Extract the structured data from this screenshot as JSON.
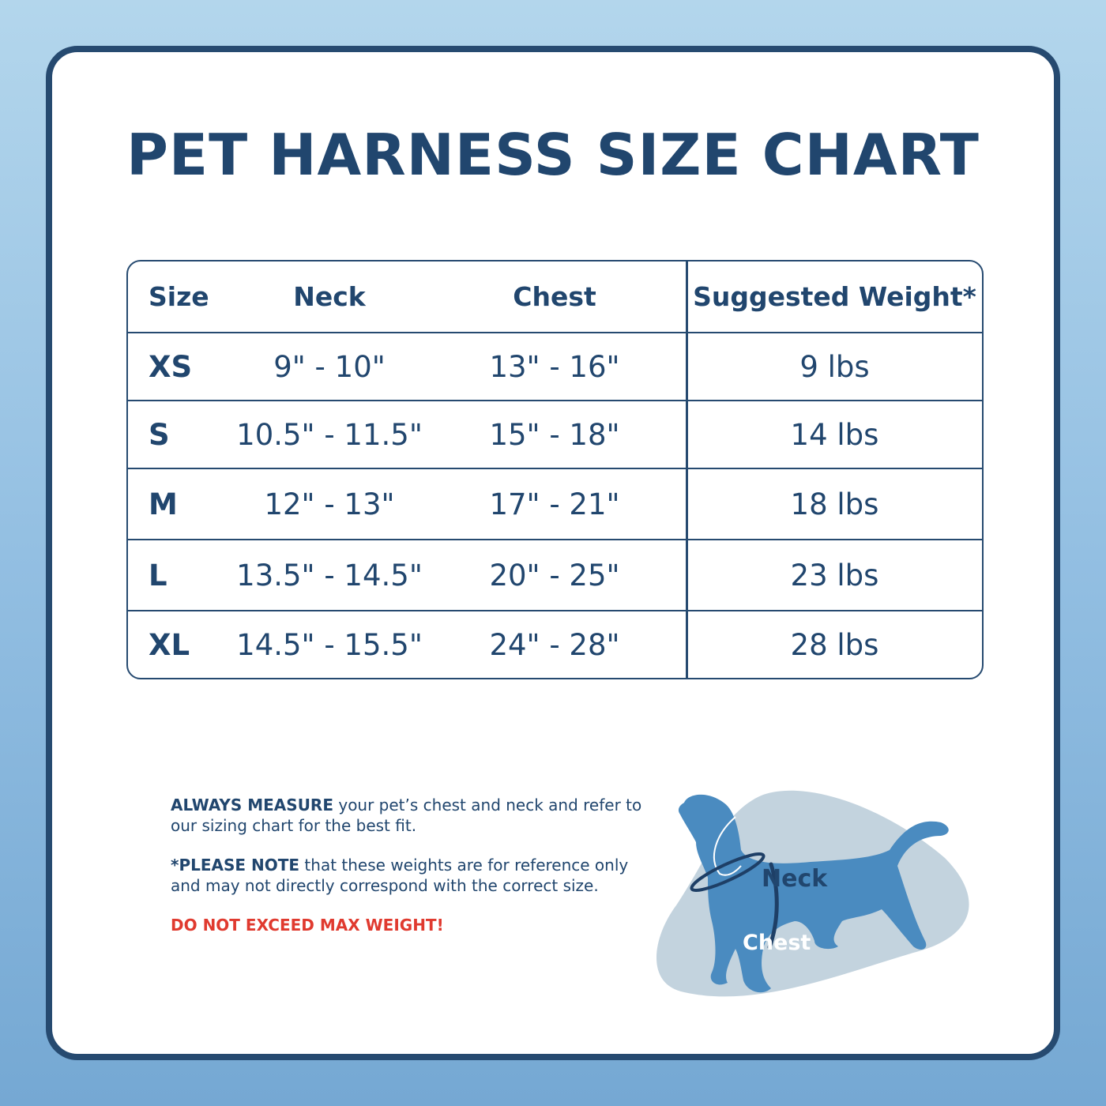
{
  "title": "PET HARNESS SIZE CHART",
  "table": {
    "headers": [
      "Size",
      "Neck",
      "Chest",
      "Suggested Weight*"
    ],
    "rows": [
      [
        "XS",
        "9\" - 10\"",
        "13\" - 16\"",
        "9 lbs"
      ],
      [
        "S",
        "10.5\" - 11.5\"",
        "15\" - 18\"",
        "14 lbs"
      ],
      [
        "M",
        "12\" - 13\"",
        "17\" - 21\"",
        "18 lbs"
      ],
      [
        "L",
        "13.5\" - 14.5\"",
        "20\" - 25\"",
        "23 lbs"
      ],
      [
        "XL",
        "14.5\" - 15.5\"",
        "24\" - 28\"",
        "28 lbs"
      ]
    ]
  },
  "notes": {
    "measure_bold": "ALWAYS MEASURE",
    "measure_text": " your pet’s chest and neck and refer to our sizing chart for the best fit.",
    "note_bold": "*PLEASE NOTE",
    "note_text": " that these weights are for reference only and may not directly correspond with the correct size.",
    "warning": "DO NOT EXCEED MAX WEIGHT!"
  },
  "diagram": {
    "neck_label": "Neck",
    "chest_label": "Chest"
  },
  "colors": {
    "primary": "#21466e",
    "warning": "#e03a2f",
    "dog": "#4a8bc0",
    "blob": "#c3d3de"
  }
}
